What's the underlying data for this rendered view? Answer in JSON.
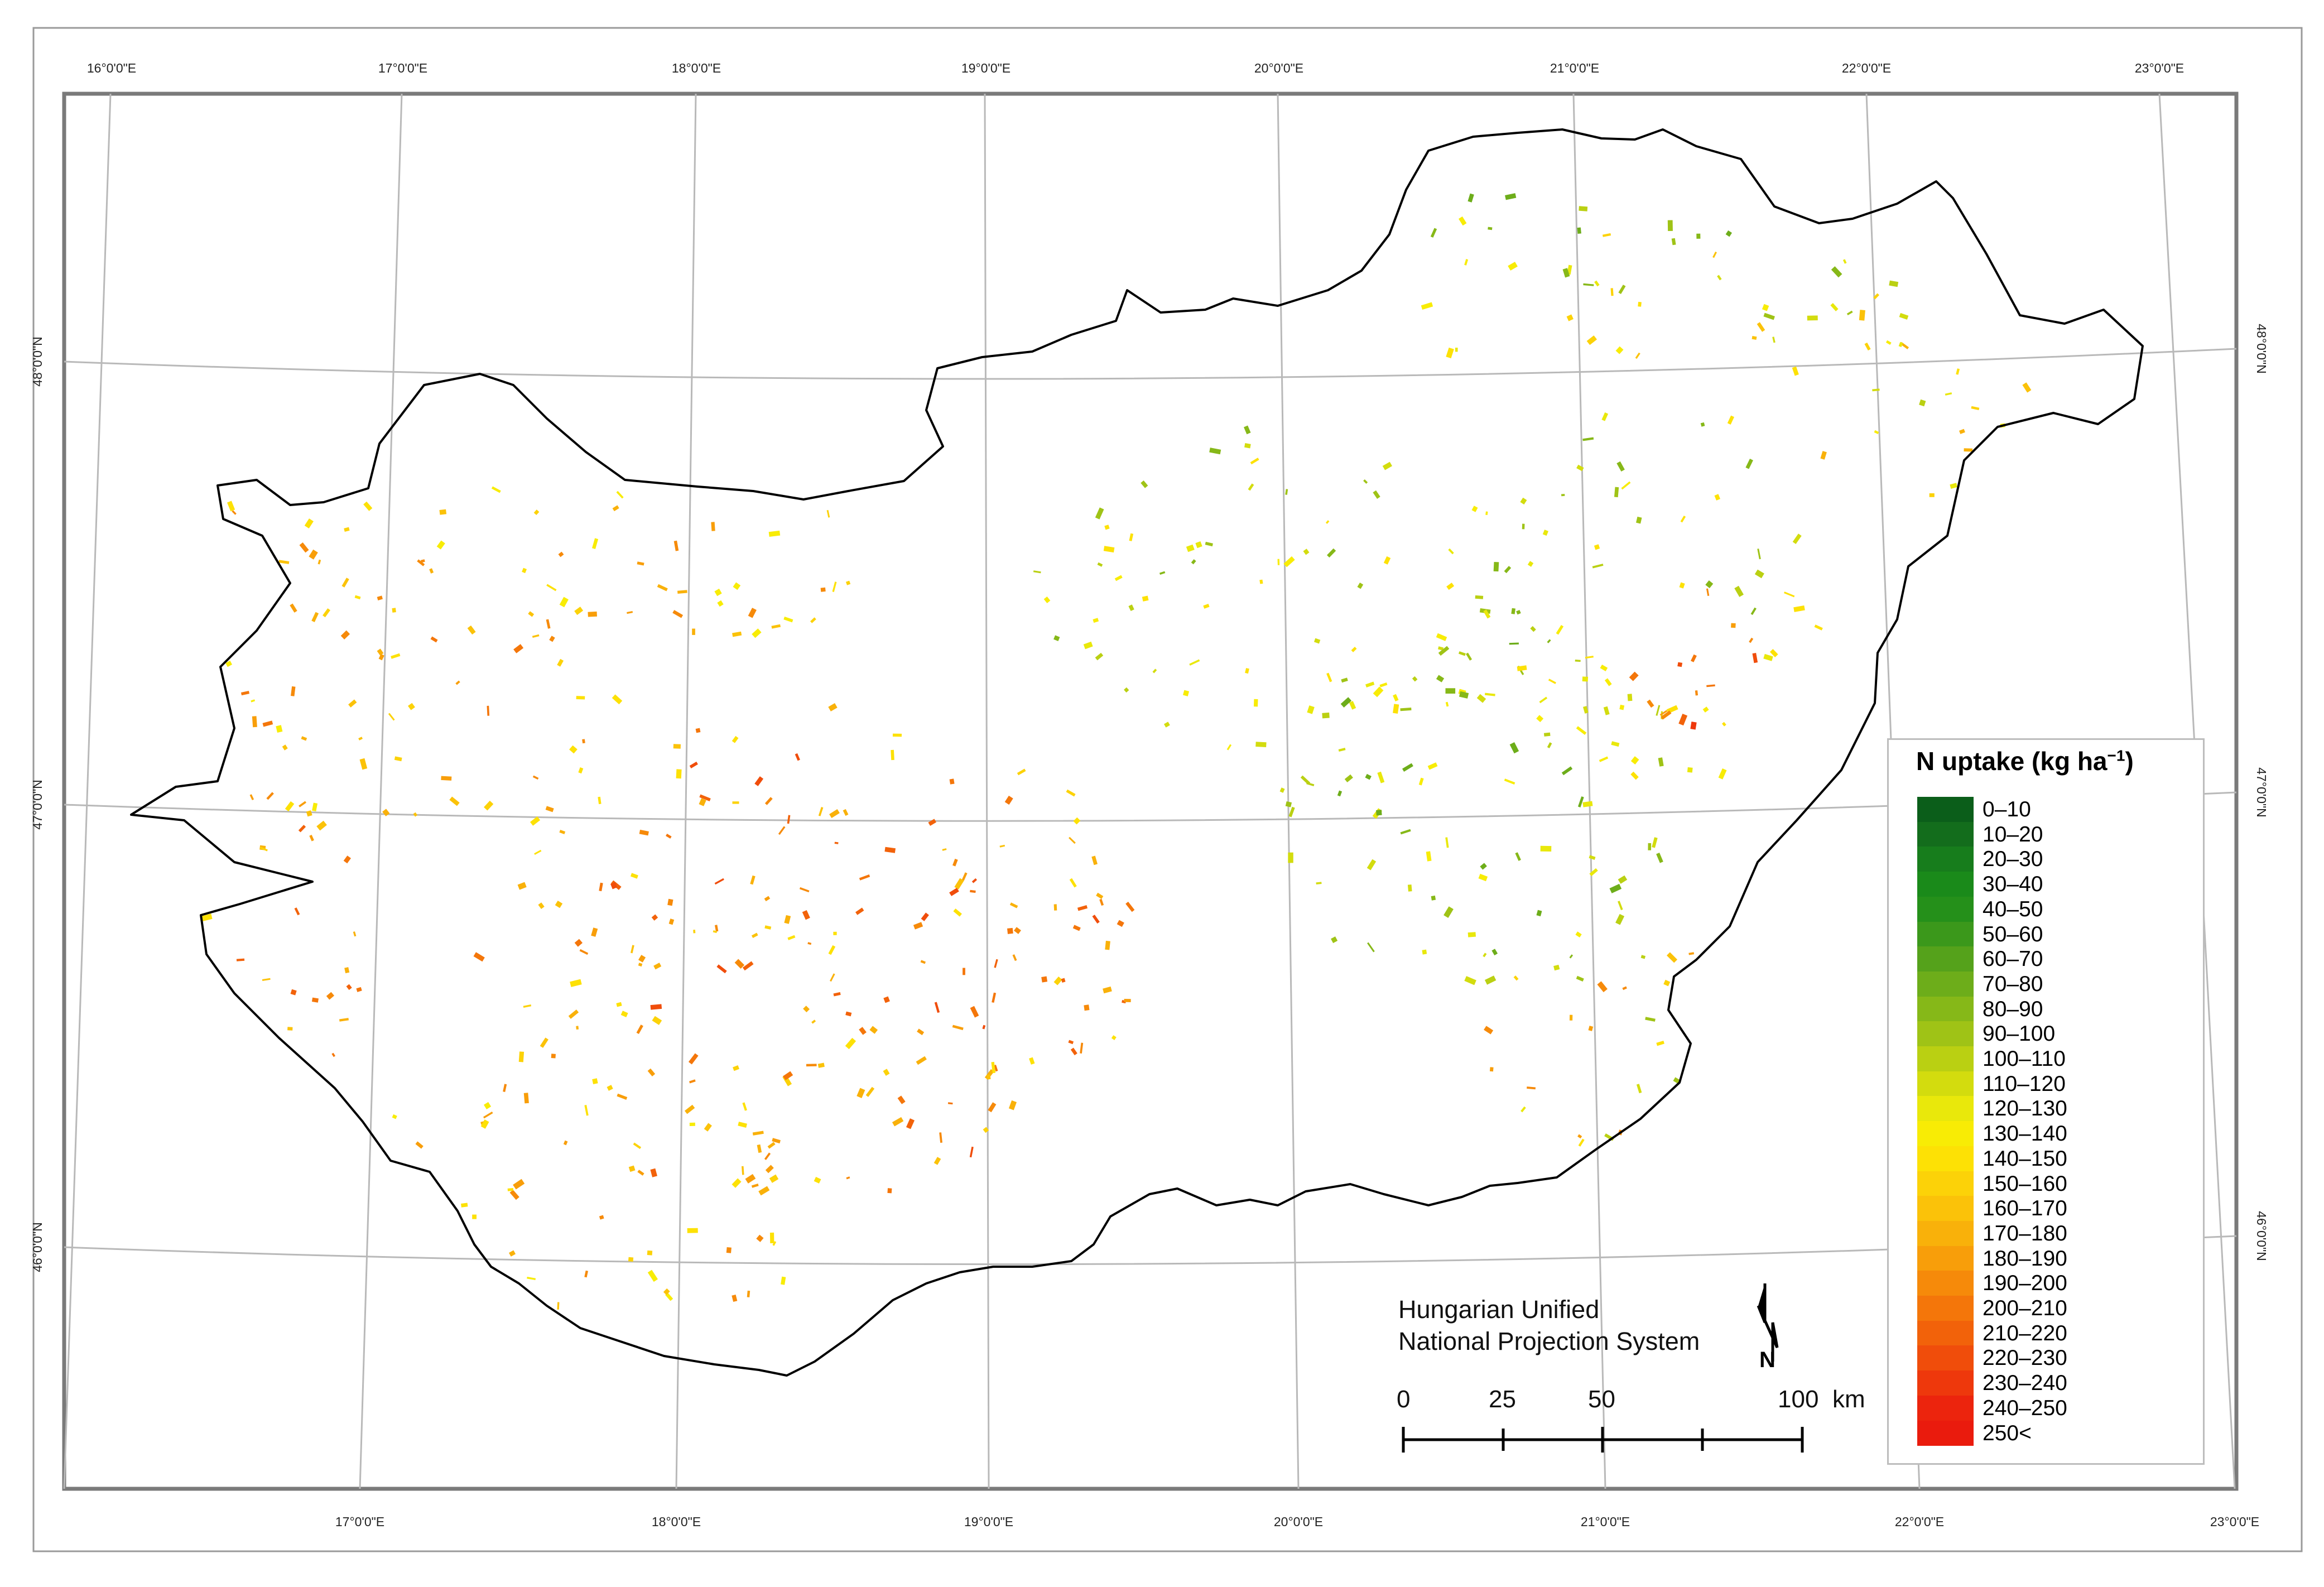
{
  "graticule": {
    "top_labels": [
      "16°0'0\"E",
      "17°0'0\"E",
      "18°0'0\"E",
      "19°0'0\"E",
      "20°0'0\"E",
      "21°0'0\"E",
      "22°0'0\"E",
      "23°0'0\"E"
    ],
    "bottom_labels": [
      "17°0'0\"E",
      "18°0'0\"E",
      "19°0'0\"E",
      "20°0'0\"E",
      "21°0'0\"E",
      "22°0'0\"E",
      "23°0'0\"E"
    ],
    "left_labels": [
      "48°0'0\"N",
      "47°0'0\"N",
      "46°0'0\"N"
    ],
    "right_labels": [
      "48°0'0\"N",
      "47°0'0\"N",
      "46°0'0\"N"
    ]
  },
  "legend": {
    "title_main": "N uptake (kg ha",
    "title_sup": "−1",
    "title_close": ")",
    "classes": [
      {
        "label": "0–10",
        "color": "#0b5e1a"
      },
      {
        "label": "10–20",
        "color": "#136d1c"
      },
      {
        "label": "20–30",
        "color": "#177d1c"
      },
      {
        "label": "30–40",
        "color": "#1a8a1a"
      },
      {
        "label": "40–50",
        "color": "#25901a"
      },
      {
        "label": "50–60",
        "color": "#3b981b"
      },
      {
        "label": "60–70",
        "color": "#55a21b"
      },
      {
        "label": "70–80",
        "color": "#6dad1a"
      },
      {
        "label": "80–90",
        "color": "#86b818"
      },
      {
        "label": "90–100",
        "color": "#9fc316"
      },
      {
        "label": "100–110",
        "color": "#bad012"
      },
      {
        "label": "110–120",
        "color": "#d3dc0e"
      },
      {
        "label": "120–130",
        "color": "#e9e80b"
      },
      {
        "label": "130–140",
        "color": "#f8ec05"
      },
      {
        "label": "140–150",
        "color": "#fde105"
      },
      {
        "label": "150–160",
        "color": "#fcd208"
      },
      {
        "label": "160–170",
        "color": "#fbc209"
      },
      {
        "label": "170–180",
        "color": "#f9b10a"
      },
      {
        "label": "180–190",
        "color": "#f89e0a"
      },
      {
        "label": "190–200",
        "color": "#f68a0a"
      },
      {
        "label": "200–210",
        "color": "#f4760a"
      },
      {
        "label": "210–220",
        "color": "#f2620a"
      },
      {
        "label": "220–230",
        "color": "#f04d0b"
      },
      {
        "label": "230–240",
        "color": "#ee380c"
      },
      {
        "label": "240–250",
        "color": "#ec240d"
      },
      {
        "label": "250<",
        "color": "#ea1b0d"
      }
    ]
  },
  "projection": {
    "line1": "Hungarian Unified",
    "line2": "National Projection System"
  },
  "north_arrow": {
    "label": "N",
    "icon": "north-arrow-icon"
  },
  "scale_bar": {
    "labels": [
      "0",
      "25",
      "50",
      "100"
    ],
    "unit": "km"
  },
  "colors": {
    "border": "#7a7a7a",
    "graticule": "#b9b9b9",
    "country_outline": "#000000"
  }
}
